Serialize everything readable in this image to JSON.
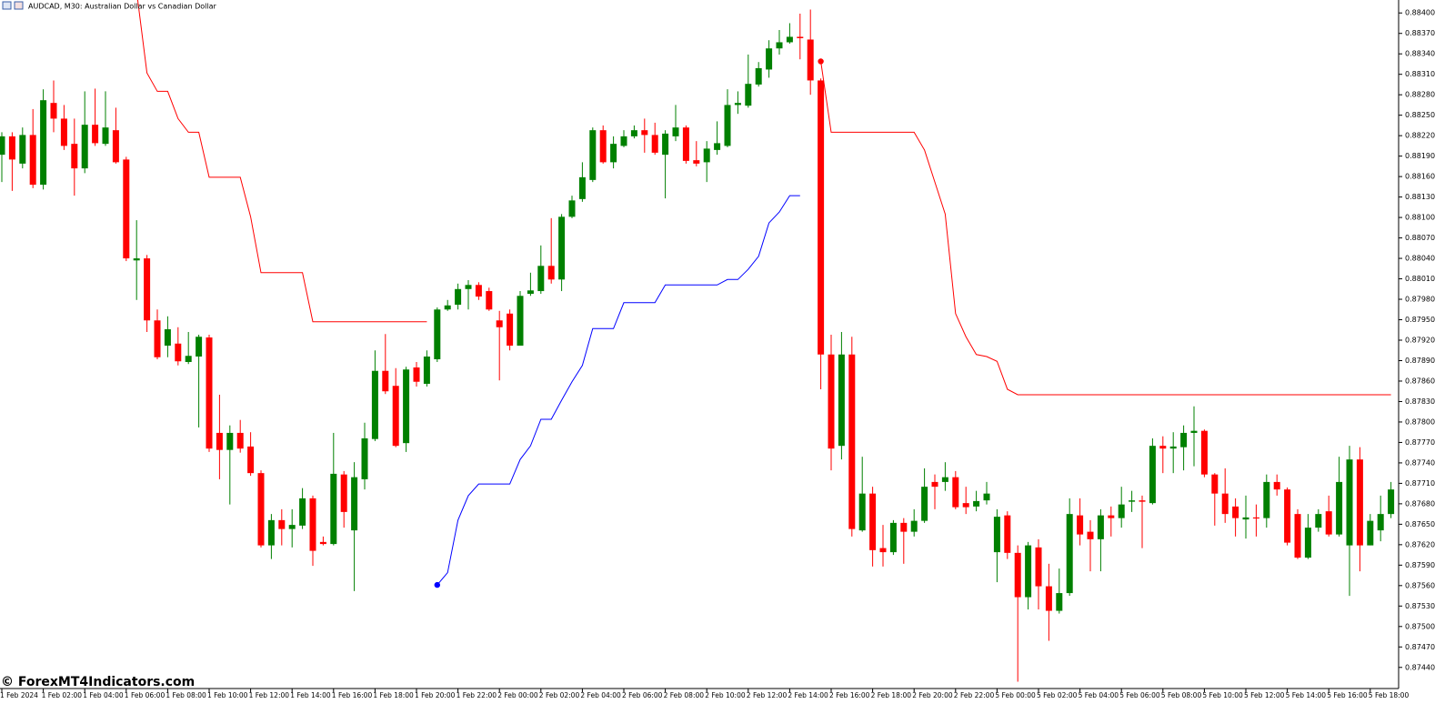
{
  "chart_data": {
    "type": "candlestick",
    "title": "AUDCAD, M30:  Australian Dollar vs Canadian Dollar",
    "watermark": "© ForexMT4Indicators.com",
    "up_color": "#008000",
    "down_color": "#ff0000",
    "grid": false,
    "ylim": [
      0.87409,
      0.88419
    ],
    "yticks": [
      {
        "value": 0.884,
        "label": "0.88400"
      },
      {
        "value": 0.8837,
        "label": "0.88370"
      },
      {
        "value": 0.8834,
        "label": "0.88340"
      },
      {
        "value": 0.8831,
        "label": "0.88310"
      },
      {
        "value": 0.8828,
        "label": "0.88280"
      },
      {
        "value": 0.8825,
        "label": "0.88250"
      },
      {
        "value": 0.8822,
        "label": "0.88220"
      },
      {
        "value": 0.8819,
        "label": "0.88190"
      },
      {
        "value": 0.8816,
        "label": "0.88160"
      },
      {
        "value": 0.8813,
        "label": "0.88130"
      },
      {
        "value": 0.881,
        "label": "0.88100"
      },
      {
        "value": 0.8807,
        "label": "0.88070"
      },
      {
        "value": 0.8804,
        "label": "0.88040"
      },
      {
        "value": 0.8801,
        "label": "0.88010"
      },
      {
        "value": 0.8798,
        "label": "0.87980"
      },
      {
        "value": 0.8795,
        "label": "0.87950"
      },
      {
        "value": 0.8792,
        "label": "0.87920"
      },
      {
        "value": 0.8789,
        "label": "0.87890"
      },
      {
        "value": 0.8786,
        "label": "0.87860"
      },
      {
        "value": 0.8783,
        "label": "0.87830"
      },
      {
        "value": 0.878,
        "label": "0.87800"
      },
      {
        "value": 0.8777,
        "label": "0.87770"
      },
      {
        "value": 0.8774,
        "label": "0.87740"
      },
      {
        "value": 0.8771,
        "label": "0.87710"
      },
      {
        "value": 0.8768,
        "label": "0.87680"
      },
      {
        "value": 0.8765,
        "label": "0.87650"
      },
      {
        "value": 0.8762,
        "label": "0.87620"
      },
      {
        "value": 0.8759,
        "label": "0.87590"
      },
      {
        "value": 0.8756,
        "label": "0.87560"
      },
      {
        "value": 0.8753,
        "label": "0.87530"
      },
      {
        "value": 0.875,
        "label": "0.87500"
      },
      {
        "value": 0.8747,
        "label": "0.87470"
      },
      {
        "value": 0.8744,
        "label": "0.87440"
      }
    ],
    "categories": [
      "1 Feb 2024",
      null,
      null,
      null,
      "1 Feb 02:00",
      null,
      null,
      null,
      "1 Feb 04:00",
      null,
      null,
      null,
      "1 Feb 06:00",
      null,
      null,
      null,
      "1 Feb 08:00",
      null,
      null,
      null,
      "1 Feb 10:00",
      null,
      null,
      null,
      "1 Feb 12:00",
      null,
      null,
      null,
      "1 Feb 14:00",
      null,
      null,
      null,
      "1 Feb 16:00",
      null,
      null,
      null,
      "1 Feb 18:00",
      null,
      null,
      null,
      "1 Feb 20:00",
      null,
      null,
      null,
      "1 Feb 22:00",
      null,
      null,
      null,
      "2 Feb 00:00",
      null,
      null,
      null,
      "2 Feb 02:00",
      null,
      null,
      null,
      "2 Feb 04:00",
      null,
      null,
      null,
      "2 Feb 06:00",
      null,
      null,
      null,
      "2 Feb 08:00",
      null,
      null,
      null,
      "2 Feb 10:00",
      null,
      null,
      null,
      "2 Feb 12:00",
      null,
      null,
      null,
      "2 Feb 14:00",
      null,
      null,
      null,
      "2 Feb 16:00",
      null,
      null,
      null,
      "2 Feb 18:00",
      null,
      null,
      null,
      "2 Feb 20:00",
      null,
      null,
      null,
      "2 Feb 22:00",
      null,
      null,
      null,
      "5 Feb 00:00",
      null,
      null,
      null,
      "5 Feb 02:00",
      null,
      null,
      null,
      "5 Feb 04:00",
      null,
      null,
      null,
      "5 Feb 06:00",
      null,
      null,
      null,
      "5 Feb 08:00",
      null,
      null,
      null,
      "5 Feb 10:00",
      null,
      null,
      null,
      "5 Feb 12:00",
      null,
      null,
      null,
      "5 Feb 14:00",
      null,
      null,
      null,
      "5 Feb 16:00",
      null,
      null,
      null,
      "5 Feb 18:00",
      null,
      null
    ],
    "open": [
      0.88192,
      0.88219,
      0.88179,
      0.88221,
      0.88148,
      0.88268,
      0.88245,
      0.88208,
      0.88172,
      0.88236,
      0.88208,
      0.88228,
      0.88185,
      0.88037,
      0.8804,
      0.87949,
      0.87912,
      0.87915,
      0.87888,
      0.87896,
      0.87924,
      0.87784,
      0.87759,
      0.87784,
      0.87764,
      0.87725,
      0.87619,
      0.87656,
      0.87643,
      0.87648,
      0.87688,
      0.87624,
      0.87621,
      0.87723,
      0.87641,
      0.87716,
      0.87775,
      0.87875,
      0.87853,
      0.87769,
      0.8788,
      0.87856,
      0.87892,
      0.87965,
      0.87972,
      0.87995,
      0.88001,
      0.87992,
      0.87949,
      0.87959,
      0.87912,
      0.87988,
      0.87992,
      0.88029,
      0.88009,
      0.88101,
      0.88127,
      0.88155,
      0.88228,
      0.88181,
      0.88205,
      0.88219,
      0.88228,
      0.88221,
      0.88192,
      0.88219,
      0.88232,
      0.88184,
      0.88181,
      0.88199,
      0.88205,
      0.88265,
      0.88264,
      0.88295,
      0.88317,
      0.88348,
      0.88357,
      0.88365,
      0.88361,
      0.88301,
      0.87899,
      0.87765,
      0.87899,
      0.87641,
      0.87695,
      0.87615,
      0.87609,
      0.87652,
      0.87639,
      0.87655,
      0.87712,
      0.87712,
      0.87719,
      0.87681,
      0.87676,
      0.87685,
      0.87609,
      0.87663,
      0.87608,
      0.87543,
      0.87616,
      0.87559,
      0.87523,
      0.87549,
      0.87663,
      0.87639,
      0.87628,
      0.87663,
      0.87659,
      0.87683,
      0.87685,
      0.87681,
      0.87765,
      0.87761,
      0.87763,
      0.87784,
      0.87787,
      0.87723,
      0.87695,
      0.87676,
      0.87657,
      0.8766,
      0.87659,
      0.87712,
      0.87701,
      0.87665,
      0.87601,
      0.87645,
      0.87669,
      0.87635,
      0.87619,
      0.87745,
      0.87619,
      0.87641,
      0.87665
    ],
    "high": [
      0.88225,
      0.88225,
      0.88232,
      0.88259,
      0.88288,
      0.88301,
      0.88265,
      0.88245,
      0.88285,
      0.88289,
      0.88285,
      0.88261,
      0.88189,
      0.88096,
      0.88045,
      0.87965,
      0.87955,
      0.87939,
      0.87932,
      0.87928,
      0.87928,
      0.8784,
      0.87795,
      0.87803,
      0.87785,
      0.87729,
      0.87665,
      0.87672,
      0.87672,
      0.87703,
      0.87692,
      0.87632,
      0.87784,
      0.87728,
      0.87741,
      0.87799,
      0.87905,
      0.87929,
      0.87879,
      0.87881,
      0.87888,
      0.87905,
      0.87968,
      0.87979,
      0.88003,
      0.88008,
      0.88005,
      0.87997,
      0.87963,
      0.87965,
      0.87992,
      0.88019,
      0.88059,
      0.88099,
      0.88105,
      0.88132,
      0.88181,
      0.88232,
      0.88235,
      0.88219,
      0.88228,
      0.88235,
      0.88245,
      0.88239,
      0.88228,
      0.88265,
      0.88235,
      0.88212,
      0.88212,
      0.88241,
      0.88288,
      0.88285,
      0.88339,
      0.88328,
      0.8836,
      0.88375,
      0.88385,
      0.88399,
      0.88405,
      0.88304,
      0.87928,
      0.87932,
      0.87925,
      0.87749,
      0.87705,
      0.87649,
      0.87656,
      0.87659,
      0.87672,
      0.87732,
      0.87723,
      0.87741,
      0.87728,
      0.87705,
      0.87699,
      0.87712,
      0.87672,
      0.87669,
      0.87619,
      0.87624,
      0.87628,
      0.87592,
      0.87585,
      0.87688,
      0.87688,
      0.87656,
      0.87672,
      0.87676,
      0.87705,
      0.87699,
      0.87692,
      0.87776,
      0.87779,
      0.87785,
      0.87795,
      0.87823,
      0.87789,
      0.87725,
      0.87732,
      0.87688,
      0.87692,
      0.87679,
      0.87723,
      0.87723,
      0.87704,
      0.87672,
      0.87665,
      0.87672,
      0.87692,
      0.87749,
      0.87765,
      0.87763,
      0.87665,
      0.87692,
      0.87712
    ],
    "low": [
      0.88152,
      0.88139,
      0.88172,
      0.88143,
      0.88141,
      0.88225,
      0.88199,
      0.88132,
      0.88165,
      0.88205,
      0.88205,
      0.88179,
      0.88036,
      0.87979,
      0.87932,
      0.87892,
      0.87895,
      0.87883,
      0.87885,
      0.87792,
      0.87756,
      0.87716,
      0.87679,
      0.87755,
      0.87721,
      0.87616,
      0.87599,
      0.87619,
      0.87616,
      0.87643,
      0.87589,
      0.87619,
      0.87619,
      0.87645,
      0.87552,
      0.87701,
      0.87772,
      0.87841,
      0.87763,
      0.87756,
      0.87852,
      0.87852,
      0.87888,
      0.87963,
      0.87965,
      0.87965,
      0.87979,
      0.87963,
      0.87861,
      0.87905,
      0.87912,
      0.87985,
      0.87988,
      0.88003,
      0.87992,
      0.88099,
      0.88123,
      0.88152,
      0.88179,
      0.88172,
      0.88203,
      0.88216,
      0.88195,
      0.88192,
      0.88128,
      0.88212,
      0.88179,
      0.88175,
      0.88152,
      0.88192,
      0.88203,
      0.88252,
      0.88261,
      0.88292,
      0.88305,
      0.88339,
      0.88355,
      0.88332,
      0.8828,
      0.87848,
      0.87729,
      0.87745,
      0.87632,
      0.87639,
      0.87588,
      0.87588,
      0.87605,
      0.87592,
      0.87632,
      0.87652,
      0.87672,
      0.87699,
      0.87672,
      0.87665,
      0.87669,
      0.87679,
      0.87565,
      0.87599,
      0.87419,
      0.87525,
      0.87525,
      0.87479,
      0.87519,
      0.87545,
      0.87619,
      0.87581,
      0.87581,
      0.87632,
      0.87645,
      0.87668,
      0.87615,
      0.87679,
      0.87725,
      0.87725,
      0.87729,
      0.87735,
      0.87719,
      0.87648,
      0.87652,
      0.87632,
      0.87629,
      0.87632,
      0.87645,
      0.87692,
      0.87619,
      0.87599,
      0.87599,
      0.87639,
      0.87632,
      0.87632,
      0.87545,
      0.87581,
      0.87619,
      0.87625,
      0.87659
    ],
    "close": [
      0.88219,
      0.88185,
      0.88221,
      0.88148,
      0.88272,
      0.88245,
      0.88205,
      0.88172,
      0.88236,
      0.88209,
      0.88232,
      0.88181,
      0.8804,
      0.8804,
      0.87949,
      0.87895,
      0.87936,
      0.87889,
      0.87897,
      0.87925,
      0.87761,
      0.87759,
      0.87784,
      0.87761,
      0.87725,
      0.87619,
      0.87656,
      0.87643,
      0.87649,
      0.87688,
      0.87611,
      0.87621,
      0.87724,
      0.87668,
      0.87719,
      0.87776,
      0.87875,
      0.87845,
      0.87765,
      0.87877,
      0.87859,
      0.87896,
      0.87965,
      0.87971,
      0.87995,
      0.88001,
      0.87984,
      0.87965,
      0.87939,
      0.87912,
      0.87985,
      0.87993,
      0.88029,
      0.88009,
      0.88101,
      0.88125,
      0.88159,
      0.88228,
      0.88181,
      0.88208,
      0.88219,
      0.88228,
      0.88221,
      0.88195,
      0.88223,
      0.88232,
      0.88183,
      0.88179,
      0.88201,
      0.88209,
      0.88265,
      0.88268,
      0.88296,
      0.88319,
      0.88348,
      0.88357,
      0.88365,
      0.88363,
      0.88301,
      0.87899,
      0.87761,
      0.87899,
      0.87643,
      0.87695,
      0.87612,
      0.87609,
      0.87652,
      0.87639,
      0.87655,
      0.87705,
      0.87705,
      0.87719,
      0.87675,
      0.87675,
      0.87684,
      0.87695,
      0.87661,
      0.87608,
      0.87543,
      0.87619,
      0.87559,
      0.87523,
      0.87549,
      0.87665,
      0.87635,
      0.87628,
      0.87663,
      0.87659,
      0.87679,
      0.87685,
      0.87683,
      0.87765,
      0.87761,
      0.87764,
      0.87784,
      0.87787,
      0.87723,
      0.87695,
      0.87665,
      0.87659,
      0.8766,
      0.87659,
      0.87712,
      0.87701,
      0.87623,
      0.87601,
      0.87645,
      0.87665,
      0.87635,
      0.87712,
      0.87745,
      0.87619,
      0.87655,
      0.87665,
      0.87701
    ],
    "lines": [
      {
        "color": "#ff0000",
        "values": [
          null,
          null,
          null,
          null,
          null,
          null,
          null,
          null,
          null,
          null,
          null,
          null,
          null,
          0.88432,
          0.88312,
          0.88285,
          0.88285,
          0.88245,
          0.88225,
          0.88225,
          0.88159,
          0.88159,
          0.88159,
          0.88159,
          0.88101,
          0.88019,
          0.88019,
          0.88019,
          0.88019,
          0.88019,
          0.87947,
          0.87947,
          0.87947,
          0.87947,
          0.87947,
          0.87947,
          0.87947,
          0.87947,
          0.87947,
          0.87947,
          0.87947,
          0.87947,
          null,
          null,
          null,
          null,
          null,
          null,
          null,
          null,
          null,
          null,
          null,
          null,
          null,
          null,
          null,
          null,
          null,
          null,
          null,
          null,
          null,
          null,
          null,
          null,
          null,
          null,
          null,
          null,
          null,
          null,
          null,
          null,
          null,
          null,
          null,
          null,
          null,
          0.88329,
          0.88225,
          0.88225,
          0.88225,
          0.88225,
          0.88225,
          0.88225,
          0.88225,
          0.88225,
          0.88225,
          0.88199,
          0.88152,
          0.88105,
          0.87959,
          0.87925,
          0.87899,
          0.87896,
          0.87889,
          0.87848,
          0.8784,
          0.8784,
          0.8784,
          0.8784,
          0.8784,
          0.8784,
          0.8784,
          0.8784,
          0.8784,
          0.8784,
          0.8784,
          0.8784,
          0.8784,
          0.8784,
          0.8784,
          0.8784,
          0.8784,
          0.8784,
          0.8784,
          0.8784,
          0.8784,
          0.8784,
          0.8784,
          0.8784,
          0.8784,
          0.8784,
          0.8784,
          0.8784,
          0.8784,
          0.8784,
          0.8784,
          0.8784,
          0.8784,
          0.8784,
          0.8784,
          0.8784,
          0.8784
        ]
      },
      {
        "color": "#0000ff",
        "values": [
          null,
          null,
          null,
          null,
          null,
          null,
          null,
          null,
          null,
          null,
          null,
          null,
          null,
          null,
          null,
          null,
          null,
          null,
          null,
          null,
          null,
          null,
          null,
          null,
          null,
          null,
          null,
          null,
          null,
          null,
          null,
          null,
          null,
          null,
          null,
          null,
          null,
          null,
          null,
          null,
          null,
          null,
          0.87561,
          0.87579,
          0.87656,
          0.87692,
          0.87709,
          0.87709,
          0.87709,
          0.87709,
          0.87745,
          0.87765,
          0.87804,
          0.87804,
          0.87832,
          0.87859,
          0.87883,
          0.87937,
          0.87937,
          0.87937,
          0.87975,
          0.87975,
          0.87975,
          0.87975,
          0.88001,
          0.88001,
          0.88001,
          0.88001,
          0.88001,
          0.88001,
          0.88009,
          0.88009,
          0.88024,
          0.88043,
          0.88092,
          0.88108,
          0.88132,
          0.88132,
          null,
          null,
          null,
          null,
          null,
          null,
          null,
          null,
          null,
          null,
          null,
          null,
          null,
          null,
          null,
          null,
          null,
          null,
          null,
          null,
          null,
          null,
          null,
          null,
          null,
          null,
          null,
          null,
          null,
          null,
          null,
          null,
          null,
          null,
          null,
          null,
          null,
          null,
          null,
          null,
          null,
          null,
          null,
          null,
          null,
          null,
          null,
          null,
          null,
          null,
          null,
          null,
          null,
          null,
          null,
          null,
          null
        ]
      }
    ]
  }
}
